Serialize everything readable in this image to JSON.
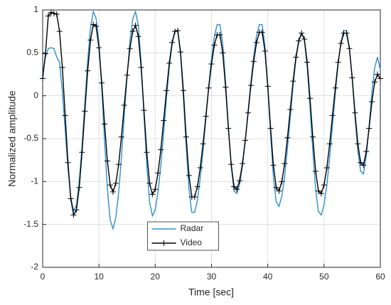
{
  "chart_data": {
    "type": "line",
    "xlabel": "Time [sec]",
    "ylabel": "Normalized amplitude",
    "x": [
      0,
      0.5,
      1,
      1.5,
      2,
      2.5,
      3,
      3.5,
      4,
      4.5,
      5,
      5.5,
      6,
      6.5,
      7,
      7.5,
      8,
      8.5,
      9,
      9.5,
      10,
      10.5,
      11,
      11.5,
      12,
      12.5,
      13,
      13.5,
      14,
      14.5,
      15,
      15.5,
      16,
      16.5,
      17,
      17.5,
      18,
      18.5,
      19,
      19.5,
      20,
      20.5,
      21,
      21.5,
      22,
      22.5,
      23,
      23.5,
      24,
      24.5,
      25,
      25.5,
      26,
      26.5,
      27,
      27.5,
      28,
      28.5,
      29,
      29.5,
      30,
      30.5,
      31,
      31.5,
      32,
      32.5,
      33,
      33.5,
      34,
      34.5,
      35,
      35.5,
      36,
      36.5,
      37,
      37.5,
      38,
      38.5,
      39,
      39.5,
      40,
      40.5,
      41,
      41.5,
      42,
      42.5,
      43,
      43.5,
      44,
      44.5,
      45,
      45.5,
      46,
      46.5,
      47,
      47.5,
      48,
      48.5,
      49,
      49.5,
      50,
      50.5,
      51,
      51.5,
      52,
      52.5,
      53,
      53.5,
      54,
      54.5,
      55,
      55.5,
      56,
      56.5,
      57,
      57.5,
      58,
      58.5,
      59,
      59.5,
      60
    ],
    "series": [
      {
        "name": "Radar",
        "color": "#2f8fd0",
        "marker": "none",
        "values": [
          0.25,
          0.45,
          0.55,
          0.56,
          0.55,
          0.45,
          0.39,
          0.05,
          -0.4,
          -0.85,
          -1.19,
          -1.34,
          -1.28,
          -1.0,
          -0.58,
          -0.08,
          0.41,
          0.79,
          0.98,
          0.9,
          0.62,
          0.09,
          -0.53,
          -1.08,
          -1.45,
          -1.55,
          -1.42,
          -1.13,
          -0.72,
          -0.23,
          0.22,
          0.63,
          0.89,
          0.98,
          0.82,
          0.39,
          -0.22,
          -0.81,
          -1.24,
          -1.4,
          -1.33,
          -1.12,
          -0.81,
          -0.43,
          -0.03,
          0.33,
          0.6,
          0.75,
          0.76,
          0.49,
          -0.01,
          -0.59,
          -1.09,
          -1.36,
          -1.36,
          -1.22,
          -0.96,
          -0.64,
          -0.27,
          0.11,
          0.43,
          0.69,
          0.83,
          0.83,
          0.6,
          0.16,
          -0.36,
          -0.82,
          -1.11,
          -1.14,
          -1.03,
          -0.82,
          -0.53,
          -0.18,
          0.16,
          0.46,
          0.7,
          0.83,
          0.83,
          0.58,
          0.11,
          -0.45,
          -0.95,
          -1.24,
          -1.29,
          -1.17,
          -0.94,
          -0.61,
          -0.25,
          0.12,
          0.42,
          0.63,
          0.73,
          0.65,
          0.34,
          -0.13,
          -0.64,
          -1.09,
          -1.35,
          -1.39,
          -1.27,
          -1.04,
          -0.72,
          -0.34,
          0.02,
          0.37,
          0.62,
          0.76,
          0.76,
          0.56,
          0.2,
          -0.25,
          -0.64,
          -0.88,
          -0.91,
          -0.7,
          -0.36,
          0.04,
          0.33,
          0.45,
          0.3
        ]
      },
      {
        "name": "Video",
        "color": "#000000",
        "marker": "plus",
        "values": [
          0.2,
          0.49,
          0.93,
          0.97,
          0.96,
          0.95,
          0.75,
          0.33,
          -0.23,
          -0.78,
          -1.2,
          -1.39,
          -1.33,
          -1.07,
          -0.66,
          -0.18,
          0.29,
          0.65,
          0.83,
          0.81,
          0.56,
          0.15,
          -0.33,
          -0.76,
          -1.04,
          -1.12,
          -1.02,
          -0.8,
          -0.48,
          -0.11,
          0.24,
          0.55,
          0.75,
          0.82,
          0.69,
          0.33,
          -0.17,
          -0.66,
          -1.02,
          -1.15,
          -1.09,
          -0.9,
          -0.63,
          -0.29,
          0.06,
          0.38,
          0.62,
          0.75,
          0.76,
          0.51,
          0.06,
          -0.48,
          -0.93,
          -1.18,
          -1.18,
          -1.06,
          -0.84,
          -0.56,
          -0.24,
          0.09,
          0.37,
          0.59,
          0.71,
          0.71,
          0.5,
          0.1,
          -0.38,
          -0.8,
          -1.06,
          -1.09,
          -0.99,
          -0.79,
          -0.52,
          -0.2,
          0.12,
          0.4,
          0.62,
          0.74,
          0.74,
          0.52,
          0.11,
          -0.38,
          -0.81,
          -1.07,
          -1.11,
          -1.0,
          -0.79,
          -0.49,
          -0.16,
          0.17,
          0.45,
          0.64,
          0.73,
          0.66,
          0.39,
          -0.03,
          -0.48,
          -0.88,
          -1.11,
          -1.14,
          -1.04,
          -0.84,
          -0.56,
          -0.23,
          0.09,
          0.39,
          0.61,
          0.73,
          0.73,
          0.55,
          0.21,
          -0.2,
          -0.56,
          -0.78,
          -0.81,
          -0.65,
          -0.38,
          -0.07,
          0.16,
          0.25,
          0.2
        ]
      }
    ],
    "xlim": [
      0,
      60
    ],
    "xticks": [
      0,
      10,
      20,
      30,
      40,
      50,
      60
    ],
    "ylim": [
      -2,
      1
    ],
    "yticks": [
      -2,
      -1.5,
      -1,
      -0.5,
      0,
      0.5,
      1
    ],
    "grid": true,
    "legend": "south"
  }
}
